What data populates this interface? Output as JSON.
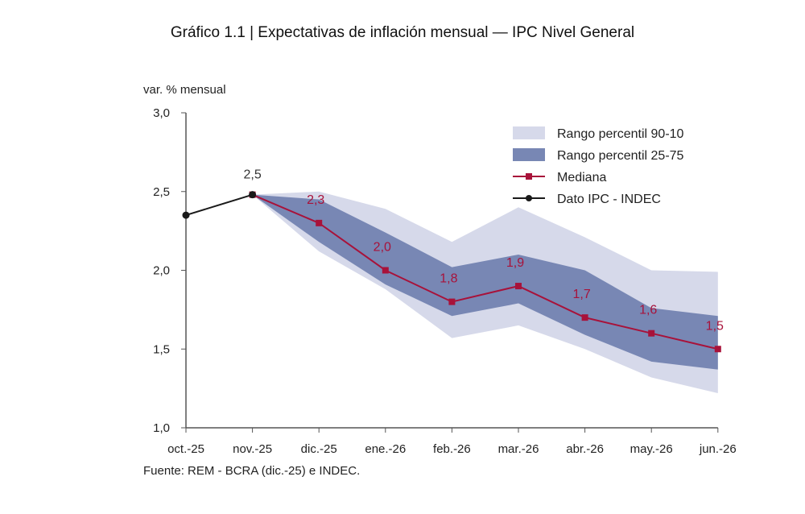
{
  "chart_data": {
    "type": "line",
    "title": "Gráfico 1.1 | Expectativas de inflación mensual — IPC Nivel General",
    "ylabel": "var. % mensual",
    "source": "Fuente: REM - BCRA (dic.-25) e INDEC.",
    "categories": [
      "oct.-25",
      "nov.-25",
      "dic.-25",
      "ene.-26",
      "feb.-26",
      "mar.-26",
      "abr.-26",
      "may.-26",
      "jun.-26"
    ],
    "ylim": [
      1.0,
      3.0
    ],
    "yticks": [
      1.0,
      1.5,
      2.0,
      2.5,
      3.0
    ],
    "ytick_labels": [
      "1,0",
      "1,5",
      "2,0",
      "2,5",
      "3,0"
    ],
    "grid": false,
    "legend_position": "top-right",
    "bands": [
      {
        "name": "Rango percentil 90-10",
        "color": "#d6d9ea",
        "upper": [
          null,
          2.48,
          2.5,
          2.39,
          2.18,
          2.4,
          2.21,
          2.0,
          1.99
        ],
        "lower": [
          null,
          2.48,
          2.12,
          1.88,
          1.57,
          1.65,
          1.5,
          1.32,
          1.22
        ]
      },
      {
        "name": "Rango percentil 25-75",
        "color": "#7887b4",
        "upper": [
          null,
          2.48,
          2.45,
          2.24,
          2.02,
          2.1,
          2.0,
          1.76,
          1.71
        ],
        "lower": [
          null,
          2.48,
          2.18,
          1.91,
          1.71,
          1.79,
          1.59,
          1.42,
          1.37
        ]
      }
    ],
    "series": [
      {
        "name": "Mediana",
        "color": "#a8123a",
        "marker": "square",
        "values": [
          null,
          2.48,
          2.3,
          2.0,
          1.8,
          1.9,
          1.7,
          1.6,
          1.5
        ],
        "labels": [
          null,
          null,
          "2,3",
          "2,0",
          "1,8",
          "1,9",
          "1,7",
          "1,6",
          "1,5"
        ]
      },
      {
        "name": "Dato IPC - INDEC",
        "color": "#1a1a1a",
        "marker": "circle",
        "values": [
          2.35,
          2.48,
          null,
          null,
          null,
          null,
          null,
          null,
          null
        ],
        "labels": [
          null,
          "2,5",
          null,
          null,
          null,
          null,
          null,
          null,
          null
        ]
      }
    ]
  }
}
